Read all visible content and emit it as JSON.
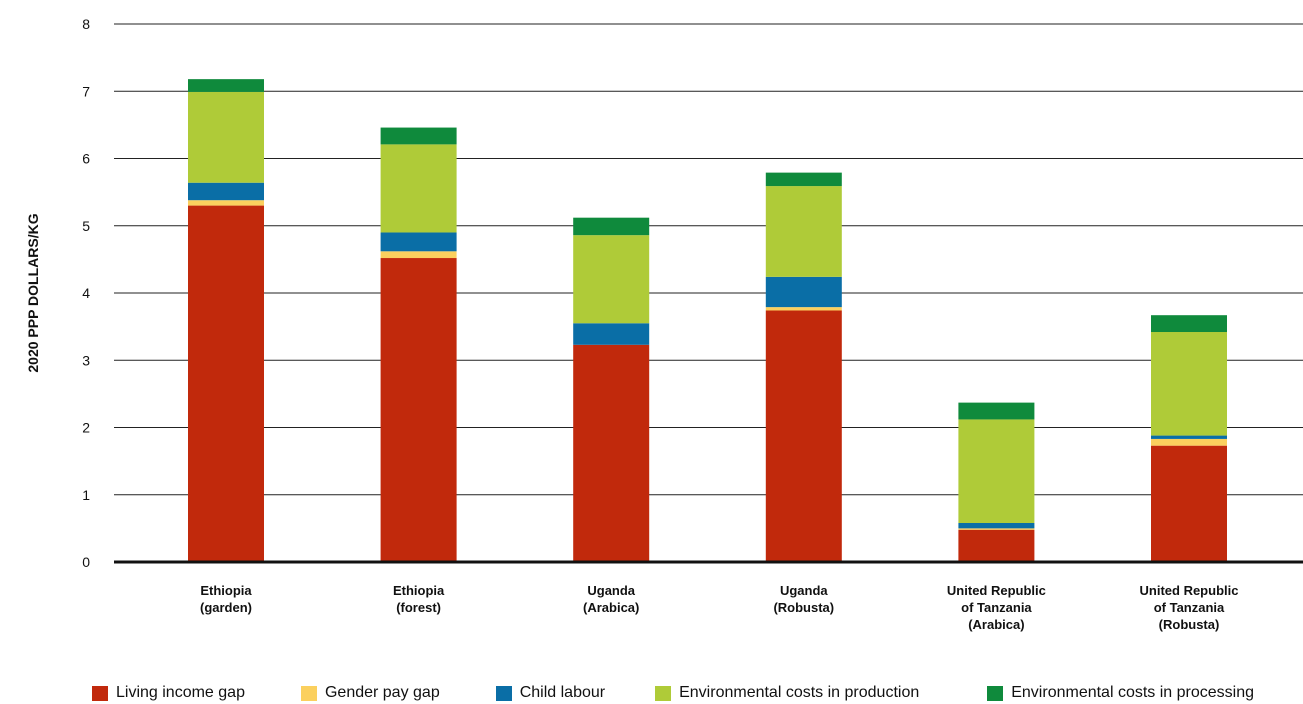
{
  "chart_data": {
    "type": "bar",
    "stacked": true,
    "ylabel": "2020 PPP DOLLARS/KG",
    "ylim": [
      0,
      8
    ],
    "yticks": [
      0,
      1,
      2,
      3,
      4,
      5,
      6,
      7,
      8
    ],
    "grid": true,
    "legend_position": "bottom",
    "categories": [
      [
        "Ethiopia",
        "(garden)"
      ],
      [
        "Ethiopia",
        "(forest)"
      ],
      [
        "Uganda",
        "(Arabica)"
      ],
      [
        "Uganda",
        "(Robusta)"
      ],
      [
        "United Republic",
        "of Tanzania",
        "(Arabica)"
      ],
      [
        "United Republic",
        "of Tanzania",
        "(Robusta)"
      ]
    ],
    "series": [
      {
        "name": "Living income gap",
        "color": "#c1290c",
        "values": [
          5.3,
          4.52,
          3.23,
          3.74,
          0.48,
          1.73
        ]
      },
      {
        "name": "Gender pay gap",
        "color": "#fbd05e",
        "values": [
          0.08,
          0.1,
          0.0,
          0.05,
          0.02,
          0.1
        ]
      },
      {
        "name": "Child labour",
        "color": "#0a6ea6",
        "values": [
          0.26,
          0.28,
          0.32,
          0.45,
          0.08,
          0.05
        ]
      },
      {
        "name": "Environmental costs in production",
        "color": "#afcb38",
        "values": [
          1.35,
          1.31,
          1.31,
          1.35,
          1.54,
          1.54
        ]
      },
      {
        "name": "Environmental costs in processing",
        "color": "#0f8a3c",
        "values": [
          0.19,
          0.25,
          0.26,
          0.2,
          0.25,
          0.25
        ]
      }
    ]
  }
}
